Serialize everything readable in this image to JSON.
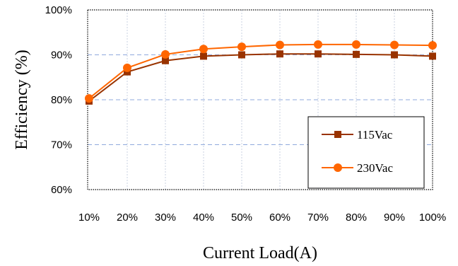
{
  "chart_data": {
    "type": "line",
    "title": "",
    "xlabel": "Current Load(A)",
    "ylabel": "Efficiency (%)",
    "categories": [
      "10%",
      "20%",
      "30%",
      "40%",
      "50%",
      "60%",
      "70%",
      "80%",
      "90%",
      "100%"
    ],
    "y_ticks": [
      "60%",
      "70%",
      "80%",
      "90%",
      "100%"
    ],
    "ylim": [
      60,
      100
    ],
    "grid": true,
    "legend_position": "bottom-right",
    "series": [
      {
        "name": "115Vac",
        "marker": "square",
        "color": "#993300",
        "values": [
          79.7,
          86.2,
          88.7,
          89.7,
          90.0,
          90.2,
          90.2,
          90.1,
          90.0,
          89.7
        ]
      },
      {
        "name": "230Vac",
        "marker": "circle",
        "color": "#FF6600",
        "values": [
          80.3,
          87.1,
          90.1,
          91.3,
          91.8,
          92.2,
          92.3,
          92.3,
          92.2,
          92.1
        ]
      }
    ]
  }
}
